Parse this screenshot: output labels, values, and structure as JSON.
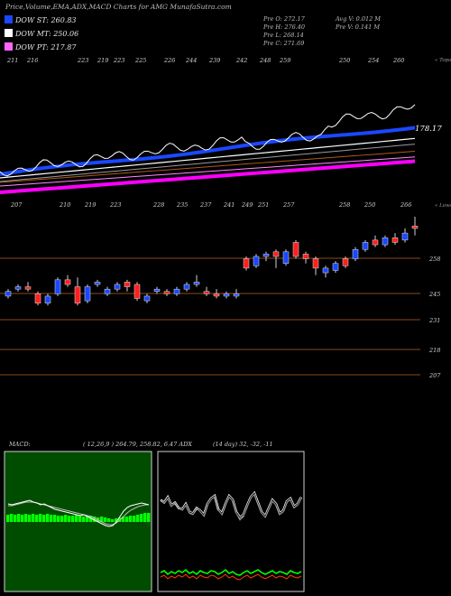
{
  "title": "Price,Volume,EMA,ADX,MACD Charts for AMG MunafaSutra.com",
  "legend": [
    {
      "label": "DOW ST: 260.83",
      "color": "#1a48ff"
    },
    {
      "label": "DOW MT: 250.06",
      "color": "#ffffff"
    },
    {
      "label": "DOW PT: 217.87",
      "color": "#ff66ff"
    }
  ],
  "ohlc": {
    "open": "Pre O: 272.17",
    "high": "Pre H: 276.40",
    "low": "Pre L: 268.14",
    "close": "Pre C: 271.69",
    "avg_volume": "Avg V: 0.012 M",
    "prev_volume": "Pre V: 0.141 M"
  },
  "colors": {
    "up": "#1a48ff",
    "down": "#ff1f1f",
    "ema_short": "#1a48ff",
    "ema_mid": "#ffffff",
    "ema_long": "#ff00ff",
    "gridline": "#8a4a1a",
    "volume_green": "#00ff00"
  },
  "chart_data": [
    {
      "type": "candlestick",
      "name": "price",
      "top_axis_labels": [
        "211",
        "216",
        "223",
        "219",
        "223",
        "225",
        "226",
        "244",
        "239",
        "242",
        "248",
        "259",
        "250",
        "254",
        "260"
      ],
      "top_axis_caption": "« Topo",
      "lower_axis_labels": [
        "207",
        "210",
        "219",
        "223",
        "228",
        "235",
        "237",
        "241",
        "249",
        "251",
        "257",
        "258",
        "250",
        "266"
      ],
      "lower_axis_caption": "« Lows",
      "price_levels": [
        "258",
        "245",
        "231",
        "218",
        "207"
      ],
      "current_ema_value": "178.17",
      "candles": [
        {
          "o": 242,
          "c": 244,
          "h": 245,
          "l": 241,
          "up": true
        },
        {
          "o": 245,
          "c": 246,
          "h": 247,
          "l": 244,
          "up": true
        },
        {
          "o": 246,
          "c": 245,
          "h": 248,
          "l": 244,
          "up": false
        },
        {
          "o": 243,
          "c": 239,
          "h": 244,
          "l": 238,
          "up": false
        },
        {
          "o": 239,
          "c": 242,
          "h": 243,
          "l": 238,
          "up": true
        },
        {
          "o": 243,
          "c": 249,
          "h": 250,
          "l": 242,
          "up": true
        },
        {
          "o": 249,
          "c": 247,
          "h": 251,
          "l": 246,
          "up": false
        },
        {
          "o": 246,
          "c": 239,
          "h": 250,
          "l": 238,
          "up": false
        },
        {
          "o": 240,
          "c": 246,
          "h": 247,
          "l": 239,
          "up": true
        },
        {
          "o": 247,
          "c": 248,
          "h": 249,
          "l": 246,
          "up": true
        },
        {
          "o": 243,
          "c": 245,
          "h": 246,
          "l": 242,
          "up": true
        },
        {
          "o": 245,
          "c": 247,
          "h": 248,
          "l": 244,
          "up": true
        },
        {
          "o": 248,
          "c": 246,
          "h": 249,
          "l": 244,
          "up": false
        },
        {
          "o": 247,
          "c": 241,
          "h": 248,
          "l": 240,
          "up": false
        },
        {
          "o": 240,
          "c": 242,
          "h": 243,
          "l": 239,
          "up": true
        },
        {
          "o": 244,
          "c": 245,
          "h": 246,
          "l": 243,
          "up": true
        },
        {
          "o": 244,
          "c": 243,
          "h": 245,
          "l": 242,
          "up": false
        },
        {
          "o": 243,
          "c": 245,
          "h": 246,
          "l": 242,
          "up": true
        },
        {
          "o": 245,
          "c": 247,
          "h": 248,
          "l": 244,
          "up": true
        },
        {
          "o": 247,
          "c": 248,
          "h": 251,
          "l": 246,
          "up": true
        },
        {
          "o": 244,
          "c": 243,
          "h": 246,
          "l": 242,
          "up": false
        },
        {
          "o": 243,
          "c": 242,
          "h": 245,
          "l": 241,
          "up": false
        },
        {
          "o": 242,
          "c": 243,
          "h": 244,
          "l": 241,
          "up": true
        },
        {
          "o": 242,
          "c": 243,
          "h": 245,
          "l": 241,
          "up": true
        },
        {
          "o": 258,
          "c": 254,
          "h": 259,
          "l": 253,
          "up": false
        },
        {
          "o": 255,
          "c": 259,
          "h": 260,
          "l": 254,
          "up": true
        },
        {
          "o": 259,
          "c": 260,
          "h": 261,
          "l": 257,
          "up": true
        },
        {
          "o": 261,
          "c": 259,
          "h": 262,
          "l": 254,
          "up": false
        },
        {
          "o": 256,
          "c": 261,
          "h": 262,
          "l": 255,
          "up": true
        },
        {
          "o": 265,
          "c": 259,
          "h": 266,
          "l": 258,
          "up": false
        },
        {
          "o": 260,
          "c": 258,
          "h": 261,
          "l": 256,
          "up": false
        },
        {
          "o": 258,
          "c": 254,
          "h": 259,
          "l": 251,
          "up": false
        },
        {
          "o": 252,
          "c": 254,
          "h": 255,
          "l": 250,
          "up": true
        },
        {
          "o": 253,
          "c": 256,
          "h": 257,
          "l": 252,
          "up": true
        },
        {
          "o": 258,
          "c": 255,
          "h": 259,
          "l": 254,
          "up": false
        },
        {
          "o": 258,
          "c": 262,
          "h": 263,
          "l": 257,
          "up": true
        },
        {
          "o": 262,
          "c": 265,
          "h": 266,
          "l": 261,
          "up": true
        },
        {
          "o": 266,
          "c": 264,
          "h": 268,
          "l": 263,
          "up": false
        },
        {
          "o": 264,
          "c": 267,
          "h": 268,
          "l": 263,
          "up": true
        },
        {
          "o": 267,
          "c": 265,
          "h": 269,
          "l": 264,
          "up": false
        },
        {
          "o": 266,
          "c": 269,
          "h": 271,
          "l": 265,
          "up": true
        },
        {
          "o": 272,
          "c": 271,
          "h": 276,
          "l": 268,
          "up": false
        }
      ]
    },
    {
      "type": "bar",
      "name": "macd",
      "label": "MACD:",
      "params": "( 12,26,9 ) 264.79, 258.82, 6.47 ADX",
      "values": [
        8,
        9,
        8,
        9,
        8,
        9,
        8,
        9,
        8,
        9,
        8,
        9,
        8,
        8,
        7,
        7,
        8,
        7,
        7,
        8,
        7,
        6,
        6,
        7,
        6,
        5,
        6,
        5,
        4,
        3,
        4,
        5,
        6,
        6,
        7,
        7,
        8,
        9,
        10,
        10
      ],
      "macd_line": [
        42,
        41,
        42,
        43,
        44,
        45,
        46,
        44,
        43,
        41,
        42,
        40,
        38,
        36,
        35,
        34,
        33,
        32,
        31,
        30,
        29,
        30,
        28,
        26,
        24,
        22,
        20,
        18,
        17,
        18,
        22,
        28,
        34,
        38,
        40,
        41,
        42,
        43,
        42,
        41
      ],
      "signal_line": [
        40,
        40,
        41,
        42,
        43,
        44,
        44,
        44,
        43,
        42,
        41,
        40,
        39,
        38,
        37,
        36,
        35,
        34,
        33,
        32,
        31,
        30,
        29,
        28,
        26,
        24,
        22,
        20,
        19,
        19,
        21,
        24,
        28,
        32,
        35,
        37,
        39,
        40,
        41,
        41
      ]
    },
    {
      "type": "line",
      "name": "adx",
      "params": "(14 day) 32, -32, -11",
      "adx_line": [
        70,
        65,
        72,
        60,
        66,
        58,
        55,
        62,
        50,
        48,
        58,
        52,
        46,
        62,
        70,
        75,
        55,
        48,
        62,
        74,
        68,
        50,
        40,
        45,
        60,
        72,
        78,
        64,
        50,
        44,
        56,
        68,
        62,
        48,
        52,
        66,
        70,
        58,
        62,
        72
      ],
      "di_minus_line": [
        62,
        58,
        66,
        54,
        58,
        50,
        48,
        56,
        44,
        42,
        50,
        46,
        40,
        56,
        64,
        68,
        48,
        42,
        56,
        68,
        62,
        44,
        36,
        40,
        54,
        66,
        72,
        58,
        44,
        38,
        50,
        62,
        56,
        42,
        46,
        60,
        64,
        52,
        56,
        66
      ],
      "di_plus_line": [
        16,
        18,
        14,
        17,
        15,
        18,
        16,
        19,
        15,
        17,
        14,
        18,
        16,
        15,
        18,
        17,
        14,
        16,
        19,
        15,
        17,
        14,
        13,
        16,
        18,
        15,
        17,
        19,
        16,
        14,
        16,
        18,
        15,
        17,
        16,
        14,
        18,
        16,
        15,
        17
      ]
    }
  ]
}
